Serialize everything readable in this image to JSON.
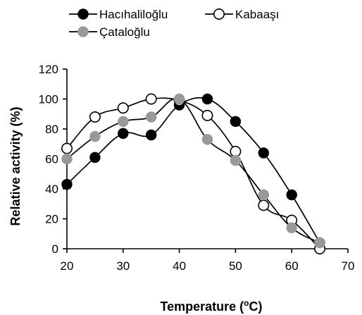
{
  "chart_data": {
    "type": "line",
    "title": "",
    "xlabel_main": "Temperature (",
    "xlabel_sup": "o",
    "xlabel_end": "C)",
    "ylabel": "Relative activity (%)",
    "xlim": [
      20,
      70
    ],
    "ylim": [
      0,
      120
    ],
    "xticks": [
      "20",
      "30",
      "40",
      "50",
      "60",
      "70"
    ],
    "yticks": [
      "0",
      "20",
      "40",
      "60",
      "80",
      "100",
      "120"
    ],
    "grid": false,
    "legend_position": "top",
    "x": [
      20,
      25,
      30,
      35,
      40,
      45,
      50,
      55,
      60,
      65
    ],
    "series": [
      {
        "name": "Hacıhaliloğlu",
        "marker": "filled-black",
        "marker_color": "#000000",
        "values": [
          43,
          61,
          77,
          76,
          96,
          100,
          85,
          64,
          36,
          4
        ]
      },
      {
        "name": "Kabaaşı",
        "marker": "open-white",
        "marker_color": "#ffffff",
        "values": [
          67,
          88,
          94,
          100,
          99,
          89,
          65,
          29,
          19,
          0
        ]
      },
      {
        "name": "Çataloğlu",
        "marker": "filled-gray",
        "marker_color": "#999999",
        "values": [
          60,
          75,
          85,
          88,
          100,
          73,
          59,
          36,
          14,
          4
        ]
      }
    ]
  }
}
